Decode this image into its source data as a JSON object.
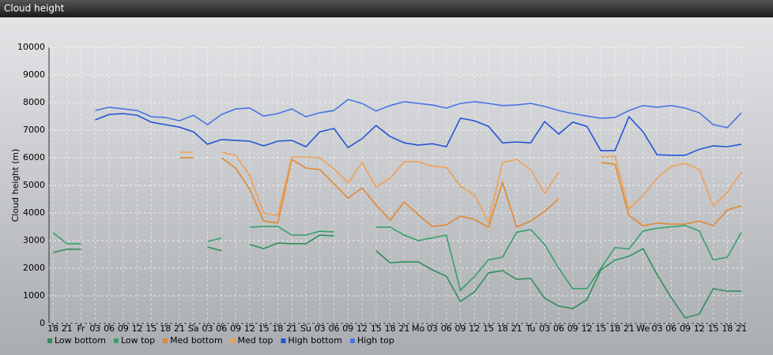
{
  "chart_data": {
    "type": "line",
    "title": "Cloud height",
    "y_label": "Cloud height (m)",
    "categories": [
      "18",
      "21",
      "Fr",
      "03",
      "06",
      "09",
      "12",
      "15",
      "18",
      "21",
      "Sa",
      "03",
      "06",
      "09",
      "12",
      "15",
      "18",
      "21",
      "Su",
      "03",
      "06",
      "09",
      "12",
      "15",
      "18",
      "21",
      "Mo",
      "03",
      "06",
      "09",
      "12",
      "15",
      "18",
      "21",
      "Tu",
      "03",
      "06",
      "09",
      "12",
      "15",
      "18",
      "21",
      "We",
      "03",
      "06",
      "09",
      "12",
      "15",
      "18",
      "21"
    ],
    "ylim": [
      0,
      10000
    ],
    "yticks": [
      0,
      1000,
      2000,
      3000,
      4000,
      5000,
      6000,
      7000,
      8000,
      9000,
      10000
    ],
    "grid": true,
    "series": [
      {
        "name": "Low bottom",
        "color": "#2f8f5b",
        "values": [
          2570,
          2690,
          2690,
          null,
          null,
          null,
          null,
          null,
          null,
          null,
          null,
          2770,
          2630,
          null,
          2860,
          2710,
          2910,
          2890,
          2890,
          3200,
          3170,
          null,
          null,
          2630,
          2200,
          2230,
          2230,
          1940,
          1710,
          800,
          1140,
          1830,
          1910,
          1600,
          1630,
          910,
          630,
          540,
          860,
          1940,
          2290,
          2430,
          2710,
          1770,
          940,
          200,
          340,
          1260,
          1170,
          1170
        ]
      },
      {
        "name": "Low top",
        "color": "#35a06a",
        "values": [
          3290,
          2890,
          2890,
          null,
          null,
          null,
          null,
          null,
          null,
          null,
          null,
          2970,
          3090,
          null,
          3490,
          3510,
          3510,
          3200,
          3200,
          3340,
          3310,
          null,
          null,
          3490,
          3490,
          3200,
          3000,
          3100,
          3200,
          1200,
          1700,
          2300,
          2400,
          3300,
          3400,
          2860,
          2000,
          1260,
          1260,
          2000,
          2750,
          2700,
          3350,
          3450,
          3500,
          3550,
          3350,
          2300,
          2400,
          3300
        ]
      },
      {
        "name": "Med bottom",
        "color": "#e2882f",
        "values": [
          null,
          null,
          null,
          null,
          null,
          null,
          null,
          null,
          null,
          6000,
          6000,
          null,
          6000,
          5630,
          4860,
          3710,
          3630,
          5940,
          5630,
          5570,
          5060,
          4540,
          4910,
          4290,
          3740,
          4400,
          3940,
          3510,
          3570,
          3890,
          3770,
          3490,
          5110,
          3490,
          3710,
          4060,
          4510,
          null,
          null,
          5830,
          5770,
          3910,
          3540,
          3630,
          3600,
          3600,
          3710,
          3540,
          4110,
          4260
        ]
      },
      {
        "name": "Med top",
        "color": "#f0a055",
        "values": [
          null,
          null,
          null,
          null,
          null,
          null,
          null,
          null,
          null,
          6200,
          6200,
          null,
          6200,
          6090,
          5370,
          4000,
          3910,
          6030,
          6030,
          6000,
          5600,
          5090,
          5830,
          4940,
          5260,
          5860,
          5860,
          5690,
          5660,
          4970,
          4660,
          3660,
          5830,
          5940,
          5570,
          4710,
          5490,
          null,
          null,
          6030,
          6060,
          4140,
          4630,
          5260,
          5690,
          5800,
          5570,
          4260,
          4740,
          5490
        ]
      },
      {
        "name": "High bottom",
        "color": "#2454d4",
        "values": [
          null,
          null,
          null,
          7370,
          7570,
          7600,
          7540,
          7290,
          7200,
          7110,
          6940,
          6490,
          6660,
          6630,
          6600,
          6430,
          6600,
          6630,
          6400,
          6940,
          7060,
          6370,
          6690,
          7170,
          6770,
          6540,
          6460,
          6510,
          6400,
          7430,
          7340,
          7140,
          6540,
          6570,
          6540,
          7310,
          6860,
          7290,
          7140,
          6260,
          6260,
          7490,
          6940,
          6110,
          6090,
          6090,
          6310,
          6430,
          6400,
          6490
        ]
      },
      {
        "name": "High top",
        "color": "#4a74e2",
        "values": [
          null,
          null,
          null,
          7710,
          7830,
          7770,
          7710,
          7490,
          7460,
          7340,
          7540,
          7200,
          7570,
          7770,
          7800,
          7510,
          7600,
          7770,
          7490,
          7630,
          7710,
          8110,
          7970,
          7690,
          7890,
          8030,
          7970,
          7910,
          7800,
          7970,
          8030,
          7970,
          7890,
          7910,
          7970,
          7860,
          7710,
          7600,
          7510,
          7430,
          7460,
          7710,
          7890,
          7830,
          7890,
          7800,
          7630,
          7200,
          7090,
          7630
        ]
      }
    ]
  }
}
